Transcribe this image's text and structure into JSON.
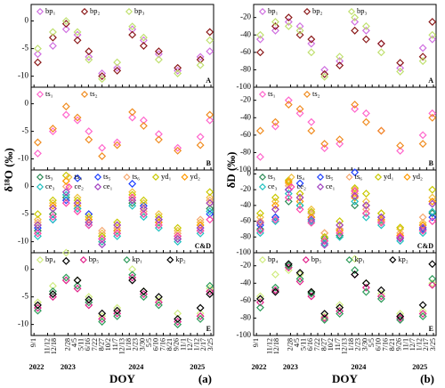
{
  "chart_data": [
    {
      "type": "scatter",
      "panel_label": "A",
      "ylim": [
        -12,
        3
      ],
      "yticks": [
        -10,
        -5,
        0
      ],
      "xlim": [
        -15,
        950
      ],
      "x": [
        20,
        100,
        170,
        230,
        290,
        360,
        440,
        520,
        580,
        660,
        760,
        880,
        930
      ],
      "series": [
        {
          "name": "bp₁",
          "color": "#d070e0",
          "values": [
            -6,
            -4.5,
            -1.5,
            -2.5,
            -6.5,
            -9.5,
            -8.5,
            -1.5,
            -3.5,
            -6,
            -9,
            -6.5,
            -5.5
          ]
        },
        {
          "name": "bp₂",
          "color": "#8b1a1a",
          "values": [
            -7.5,
            -3,
            -0.5,
            -3.5,
            -5.5,
            -10,
            -9,
            -2.5,
            -4.5,
            -5.5,
            -8.5,
            -7,
            -2
          ]
        },
        {
          "name": "bp₃",
          "color": "#c0e070",
          "values": [
            -5,
            -2,
            0,
            -2,
            -7,
            -10.5,
            -7.5,
            -1,
            -3,
            -7,
            -9.5,
            -8,
            -3.5
          ]
        }
      ]
    },
    {
      "type": "scatter",
      "panel_label": "B",
      "ylabel": "δ¹⁸O (‰)",
      "ylim": [
        -12,
        3
      ],
      "yticks": [
        -10,
        -5,
        0
      ],
      "xlim": [
        -15,
        950
      ],
      "x": [
        20,
        100,
        170,
        230,
        290,
        360,
        440,
        520,
        580,
        660,
        760,
        880,
        930
      ],
      "series": [
        {
          "name": "ts₁",
          "color": "#ff66cc",
          "values": [
            -9,
            -5,
            -2,
            -3,
            -5,
            -8,
            -7,
            -2.5,
            -3,
            -5.5,
            -8,
            -6,
            -3
          ]
        },
        {
          "name": "ts₂",
          "color": "#f08c20",
          "values": [
            -7,
            -4.5,
            -0.5,
            -2.5,
            -6.5,
            -9.5,
            -7.5,
            -1.5,
            -4,
            -6.5,
            -8.5,
            -7.5,
            -2
          ]
        }
      ]
    },
    {
      "type": "scatter",
      "panel_label": "C&D",
      "ylim": [
        -12,
        3
      ],
      "yticks": [
        -10,
        -5,
        0
      ],
      "xlim": [
        -15,
        950
      ],
      "x": [
        20,
        100,
        170,
        230,
        290,
        360,
        440,
        520,
        580,
        660,
        760,
        880,
        930
      ],
      "series": [
        {
          "name": "ts₃",
          "color": "#2e8b57",
          "values": [
            -8,
            -5,
            -2,
            -4,
            -6.5,
            -9,
            -8.5,
            -3,
            -5,
            -6.5,
            -9.5,
            -8,
            -4
          ]
        },
        {
          "name": "ts₄",
          "color": "#f0c040",
          "values": [
            -6,
            -3,
            1,
            -2,
            -5,
            -8.5,
            -7,
            -1,
            -3,
            -5,
            -8,
            -6.5,
            -2
          ]
        },
        {
          "name": "ts₅",
          "color": "#1e40ff",
          "values": [
            -7.5,
            -6,
            -2.5,
            1.5,
            -5,
            -9.5,
            -8,
            0.5,
            -3.5,
            -6,
            -9,
            -7.5,
            -5
          ]
        },
        {
          "name": "ts₆",
          "color": "#f5a870",
          "values": [
            -6.5,
            -4,
            0,
            -3,
            -6,
            -8,
            -7.5,
            -2,
            -4.5,
            -7,
            -8.5,
            -6,
            -2.5
          ]
        },
        {
          "name": "yd₁",
          "color": "#c8c800",
          "values": [
            -5,
            -2.5,
            2,
            -2.5,
            -5.5,
            -9,
            -6.5,
            -1.5,
            -2.5,
            -5.5,
            -7.5,
            -7,
            -1
          ]
        },
        {
          "name": "yd₂",
          "color": "#ff9900",
          "values": [
            -7,
            -3.5,
            1,
            -3.5,
            -6,
            -10,
            -8,
            -2.5,
            -4,
            -6.5,
            -9,
            -7,
            -3
          ]
        },
        {
          "name": "ce₃",
          "color": "#20c0c0",
          "values": [
            -9,
            -6,
            -1.5,
            -4,
            -7,
            -10,
            -9,
            -3.5,
            -5.5,
            -7.5,
            -10,
            -8.5,
            -4.5
          ]
        },
        {
          "name": "ce₂",
          "color": "#ff44aa",
          "values": [
            -8.5,
            -5.5,
            -3,
            -4.5,
            -7,
            -9.5,
            -8.5,
            -2,
            -5,
            -7,
            -9,
            -8,
            -6
          ]
        },
        {
          "name": "ce₁",
          "color": "#a040c0",
          "values": [
            -7,
            -4,
            -1,
            -3,
            -6.5,
            -10.5,
            -7,
            -2.5,
            -4,
            -6,
            -9.5,
            -7.5,
            -3
          ]
        }
      ]
    },
    {
      "type": "scatter",
      "panel_label": "E",
      "xlabel": "DOY",
      "figure_label": "(a)",
      "ylim": [
        -12,
        3
      ],
      "yticks": [
        -10,
        -5,
        0
      ],
      "xlim": [
        -15,
        950
      ],
      "xticks": [
        {
          "value": 0,
          "label": "9/1"
        },
        {
          "value": 72,
          "label": "11/12"
        },
        {
          "value": 108,
          "label": "12/18"
        },
        {
          "value": 180,
          "label": "2/28"
        },
        {
          "value": 216,
          "label": "4/5"
        },
        {
          "value": 252,
          "label": "5/11"
        },
        {
          "value": 288,
          "label": "6/16"
        },
        {
          "value": 324,
          "label": "7/22"
        },
        {
          "value": 360,
          "label": "8/27"
        },
        {
          "value": 396,
          "label": "10/2"
        },
        {
          "value": 432,
          "label": "11/7"
        },
        {
          "value": 468,
          "label": "12/13"
        },
        {
          "value": 504,
          "label": "1/18"
        },
        {
          "value": 540,
          "label": "2/23"
        },
        {
          "value": 576,
          "label": "3/30"
        },
        {
          "value": 612,
          "label": "5/5"
        },
        {
          "value": 648,
          "label": "6/10"
        },
        {
          "value": 684,
          "label": "7/16"
        },
        {
          "value": 720,
          "label": "8/21"
        },
        {
          "value": 756,
          "label": "9/26"
        },
        {
          "value": 792,
          "label": "11/1"
        },
        {
          "value": 828,
          "label": "12/7"
        },
        {
          "value": 864,
          "label": "1/12"
        },
        {
          "value": 900,
          "label": "2/17"
        },
        {
          "value": 936,
          "label": "3/25"
        }
      ],
      "year_labels": [
        {
          "value": 0,
          "label": "2022"
        },
        {
          "value": 180,
          "label": "2023"
        },
        {
          "value": 540,
          "label": "2024"
        },
        {
          "value": 864,
          "label": "2025"
        }
      ],
      "x": [
        20,
        100,
        170,
        230,
        290,
        360,
        440,
        520,
        580,
        660,
        760,
        880,
        930
      ],
      "series": [
        {
          "name": "bp₄",
          "color": "#d0ec80",
          "values": [
            -6,
            -3,
            3,
            -2,
            -5,
            -8.5,
            -7,
            0,
            -4,
            -5.5,
            -8,
            -8,
            -3.5
          ]
        },
        {
          "name": "bp₅",
          "color": "#e0208a",
          "values": [
            -7,
            -5,
            -2,
            -3.5,
            -6.5,
            -9,
            -8,
            -1.5,
            -4.5,
            -6,
            -9.5,
            -8.5,
            -4
          ]
        },
        {
          "name": "kp₁",
          "color": "#2e9b5a",
          "values": [
            -7.5,
            -4,
            -1.5,
            -3,
            -6,
            -9.5,
            -8.5,
            -1,
            -5,
            -6.5,
            -10,
            -9,
            -3
          ]
        },
        {
          "name": "kp₂",
          "color": "#000000",
          "values": [
            -6.5,
            -4.5,
            1.5,
            -2,
            -5.5,
            -8,
            -7.5,
            -2,
            -4,
            -5,
            -9,
            -7,
            -4.5
          ]
        }
      ]
    },
    {
      "type": "scatter",
      "panel_label": "A",
      "ylim": [
        -100,
        -5
      ],
      "yticks": [
        -100,
        -80,
        -60,
        -40,
        -20
      ],
      "xlim": [
        -15,
        950
      ],
      "x": [
        20,
        100,
        170,
        230,
        290,
        360,
        440,
        520,
        580,
        660,
        760,
        880,
        930
      ],
      "series": [
        {
          "name": "bp₁",
          "color": "#d070e0",
          "values": [
            -45,
            -35,
            -25,
            -30,
            -50,
            -80,
            -70,
            -25,
            -35,
            -50,
            -78,
            -55,
            -45
          ]
        },
        {
          "name": "bp₂",
          "color": "#8b1a1a",
          "values": [
            -60,
            -30,
            -20,
            -40,
            -45,
            -85,
            -75,
            -35,
            -45,
            -50,
            -72,
            -65,
            -25
          ]
        },
        {
          "name": "bp₃",
          "color": "#c0e070",
          "values": [
            -40,
            -25,
            -30,
            -35,
            -60,
            -88,
            -65,
            -20,
            -30,
            -60,
            -82,
            -70,
            -40
          ]
        }
      ]
    },
    {
      "type": "scatter",
      "panel_label": "B",
      "ylabel": "δD (‰)",
      "ylim": [
        -100,
        -5
      ],
      "yticks": [
        -100,
        -80,
        -60,
        -40,
        -20
      ],
      "xlim": [
        -15,
        950
      ],
      "x": [
        20,
        100,
        170,
        230,
        290,
        360,
        440,
        520,
        580,
        660,
        760,
        880,
        930
      ],
      "series": [
        {
          "name": "ts₁",
          "color": "#ff66cc",
          "values": [
            -85,
            -50,
            -20,
            -35,
            -45,
            -75,
            -70,
            -30,
            -35,
            -55,
            -78,
            -60,
            -35
          ]
        },
        {
          "name": "ts₂",
          "color": "#f08c20",
          "values": [
            -55,
            -45,
            -25,
            -30,
            -55,
            -70,
            -65,
            -25,
            -45,
            -55,
            -72,
            -70,
            -40
          ]
        }
      ]
    },
    {
      "type": "scatter",
      "panel_label": "C&D",
      "ylim": [
        -100,
        5
      ],
      "yticks": [
        -100,
        -80,
        -60,
        -40,
        -20,
        0
      ],
      "xlim": [
        -15,
        950
      ],
      "x": [
        20,
        100,
        170,
        230,
        290,
        360,
        440,
        520,
        580,
        660,
        760,
        880,
        930
      ],
      "series": [
        {
          "name": "ts₃",
          "color": "#2e8b57",
          "values": [
            -70,
            -55,
            -35,
            -40,
            -55,
            -82,
            -78,
            -40,
            -50,
            -60,
            -82,
            -72,
            -50
          ]
        },
        {
          "name": "ts₄",
          "color": "#f0c040",
          "values": [
            -55,
            -35,
            -12,
            -30,
            -45,
            -75,
            -65,
            -25,
            -35,
            -50,
            -70,
            -62,
            -30
          ]
        },
        {
          "name": "ts₅",
          "color": "#1e40ff",
          "values": [
            -65,
            -55,
            -20,
            -12,
            -50,
            -85,
            -70,
            2,
            -40,
            -55,
            -80,
            -70,
            -55
          ]
        },
        {
          "name": "ts₆",
          "color": "#f5a870",
          "values": [
            -60,
            -45,
            -15,
            -25,
            -50,
            -75,
            -70,
            -20,
            -45,
            -60,
            -75,
            -55,
            -35
          ]
        },
        {
          "name": "yd₁",
          "color": "#c8c800",
          "values": [
            -50,
            -30,
            -8,
            -25,
            -48,
            -80,
            -60,
            -18,
            -25,
            -50,
            -68,
            -65,
            -20
          ]
        },
        {
          "name": "yd₂",
          "color": "#ff9900",
          "values": [
            -62,
            -40,
            -10,
            -35,
            -55,
            -85,
            -72,
            -30,
            -40,
            -58,
            -78,
            -65,
            -35
          ]
        },
        {
          "name": "ce₃",
          "color": "#20c0c0",
          "values": [
            -75,
            -60,
            -25,
            -40,
            -60,
            -88,
            -80,
            -35,
            -55,
            -65,
            -85,
            -75,
            -48
          ]
        },
        {
          "name": "ce₂",
          "color": "#ff44aa",
          "values": [
            -72,
            -58,
            -30,
            -45,
            -62,
            -85,
            -75,
            -22,
            -50,
            -62,
            -80,
            -72,
            -60
          ]
        },
        {
          "name": "ce₁",
          "color": "#a040c0",
          "values": [
            -62,
            -45,
            -20,
            -30,
            -58,
            -90,
            -65,
            -28,
            -40,
            -55,
            -82,
            -68,
            -38
          ]
        }
      ]
    },
    {
      "type": "scatter",
      "panel_label": "E",
      "xlabel": "DOY",
      "figure_label": "(b)",
      "ylim": [
        -100,
        -5
      ],
      "yticks": [
        -100,
        -80,
        -60,
        -40,
        -20
      ],
      "xlim": [
        -15,
        950
      ],
      "xticks": [
        {
          "value": 0,
          "label": "9/1"
        },
        {
          "value": 72,
          "label": "11/12"
        },
        {
          "value": 108,
          "label": "12/18"
        },
        {
          "value": 180,
          "label": "2/28"
        },
        {
          "value": 216,
          "label": "4/5"
        },
        {
          "value": 252,
          "label": "5/11"
        },
        {
          "value": 288,
          "label": "6/16"
        },
        {
          "value": 324,
          "label": "7/22"
        },
        {
          "value": 360,
          "label": "8/27"
        },
        {
          "value": 396,
          "label": "10/2"
        },
        {
          "value": 432,
          "label": "11/7"
        },
        {
          "value": 468,
          "label": "12/13"
        },
        {
          "value": 504,
          "label": "1/18"
        },
        {
          "value": 540,
          "label": "2/23"
        },
        {
          "value": 576,
          "label": "3/30"
        },
        {
          "value": 612,
          "label": "5/5"
        },
        {
          "value": 648,
          "label": "6/10"
        },
        {
          "value": 684,
          "label": "7/16"
        },
        {
          "value": 720,
          "label": "8/21"
        },
        {
          "value": 756,
          "label": "9/26"
        },
        {
          "value": 792,
          "label": "11/1"
        },
        {
          "value": 828,
          "label": "12/7"
        },
        {
          "value": 864,
          "label": "1/12"
        },
        {
          "value": 900,
          "label": "2/17"
        },
        {
          "value": 936,
          "label": "3/25"
        }
      ],
      "year_labels": [
        {
          "value": 0,
          "label": "2022"
        },
        {
          "value": 180,
          "label": "2023"
        },
        {
          "value": 540,
          "label": "2024"
        },
        {
          "value": 864,
          "label": "2025"
        }
      ],
      "x": [
        20,
        100,
        170,
        230,
        290,
        360,
        440,
        520,
        580,
        660,
        760,
        880,
        930
      ],
      "series": [
        {
          "name": "bp₄",
          "color": "#d0ec80",
          "values": [
            -55,
            -30,
            -25,
            -30,
            -50,
            -78,
            -65,
            -12,
            -40,
            -52,
            -75,
            -72,
            -40
          ]
        },
        {
          "name": "bp₅",
          "color": "#e0208a",
          "values": [
            -62,
            -48,
            -22,
            -38,
            -55,
            -80,
            -72,
            -30,
            -45,
            -55,
            -80,
            -75,
            -42
          ]
        },
        {
          "name": "kp₁",
          "color": "#2e9b5a",
          "values": [
            -68,
            -45,
            -20,
            -35,
            -52,
            -82,
            -75,
            -25,
            -50,
            -58,
            -82,
            -78,
            -35
          ]
        },
        {
          "name": "kp₂",
          "color": "#000000",
          "values": [
            -58,
            -50,
            -18,
            -28,
            -50,
            -75,
            -68,
            -30,
            -40,
            -48,
            -78,
            -65,
            -18
          ]
        }
      ]
    }
  ]
}
